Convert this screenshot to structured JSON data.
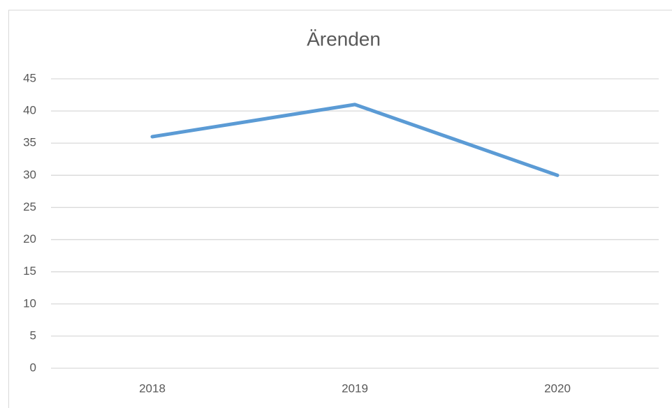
{
  "chart_data": {
    "type": "line",
    "title": "Ärenden",
    "categories": [
      "2018",
      "2019",
      "2020"
    ],
    "series": [
      {
        "name": "Ärenden",
        "color": "#5b9bd5",
        "values": [
          36,
          41,
          30
        ]
      }
    ],
    "ylim": [
      0,
      45
    ],
    "yticks": [
      0,
      5,
      10,
      15,
      20,
      25,
      30,
      35,
      40,
      45
    ],
    "grid": true
  }
}
